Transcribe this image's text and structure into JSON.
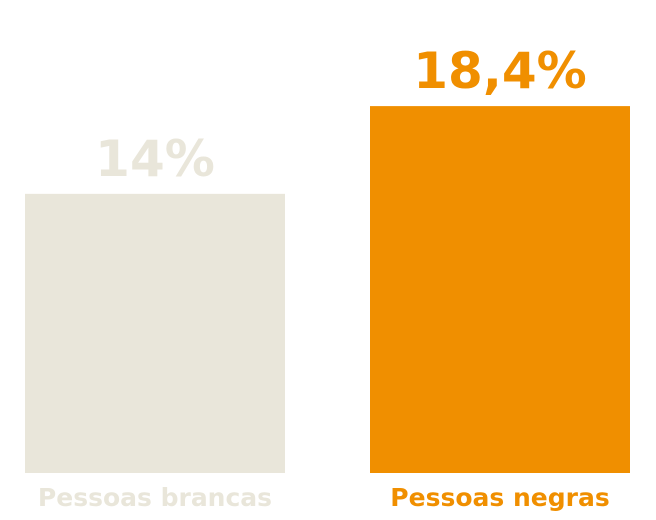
{
  "chart_data": {
    "type": "bar",
    "categories": [
      "Pessoas brancas",
      "Pessoas negras"
    ],
    "values": [
      14,
      18.4
    ],
    "value_labels": [
      "14%",
      "18,4%"
    ],
    "colors": [
      "#e9e6da",
      "#f08f00"
    ]
  }
}
